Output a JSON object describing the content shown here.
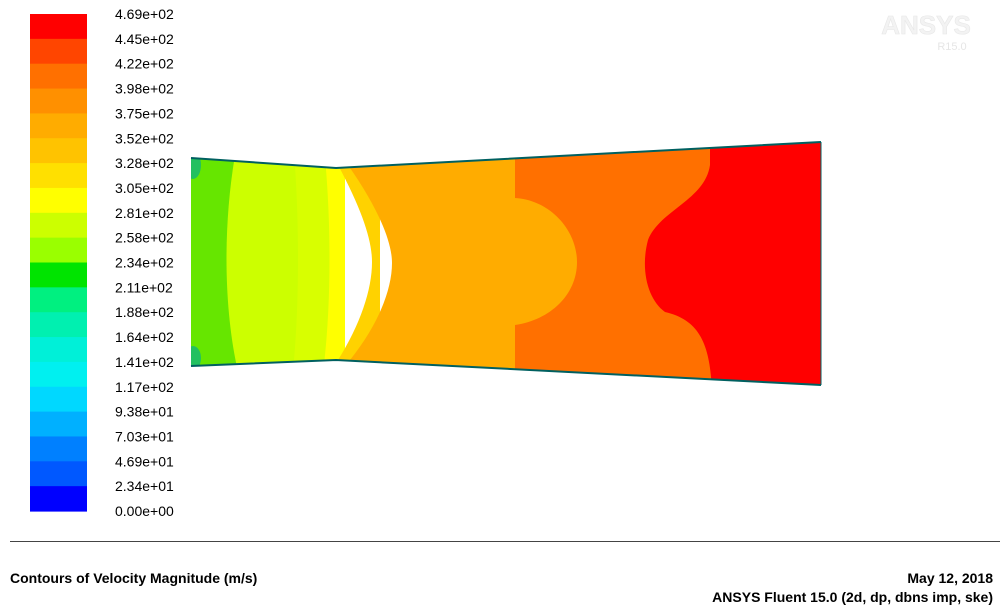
{
  "colorbar": {
    "labels": [
      "4.69e+02",
      "4.45e+02",
      "4.22e+02",
      "3.98e+02",
      "3.75e+02",
      "3.52e+02",
      "3.28e+02",
      "3.05e+02",
      "2.81e+02",
      "2.58e+02",
      "2.34e+02",
      "2.11e+02",
      "1.88e+02",
      "1.64e+02",
      "1.41e+02",
      "1.17e+02",
      "9.38e+01",
      "7.03e+01",
      "4.69e+01",
      "2.34e+01",
      "0.00e+00"
    ],
    "colors": [
      "#ff0000",
      "#ff4500",
      "#ff7000",
      "#ff9000",
      "#ffac00",
      "#ffc300",
      "#ffe000",
      "#ffff00",
      "#ccff00",
      "#9aff00",
      "#00e400",
      "#00f080",
      "#00f0b0",
      "#00f0d8",
      "#00f0f0",
      "#00d8ff",
      "#00b0ff",
      "#0080ff",
      "#0058ff",
      "#0000ff"
    ]
  },
  "domain_colors": {
    "inlet": "#66e600",
    "inlet_wall": "#22c060",
    "throat_core": "#ffff00",
    "throat_band_1": "#d8ff00",
    "throat_band_2": "#ffd200",
    "band_1": "#ccff00",
    "band_2": "#ffac00",
    "band_3": "#ff7000",
    "outlet": "#ff0000",
    "wall_layer": "#006060"
  },
  "watermark": {
    "brand": "ANSYS",
    "version": "R15.0"
  },
  "footer": {
    "title": "Contours of Velocity Magnitude (m/s)",
    "date": "May 12, 2018",
    "solver": "ANSYS Fluent 15.0 (2d, dp, dbns imp, ske)"
  }
}
